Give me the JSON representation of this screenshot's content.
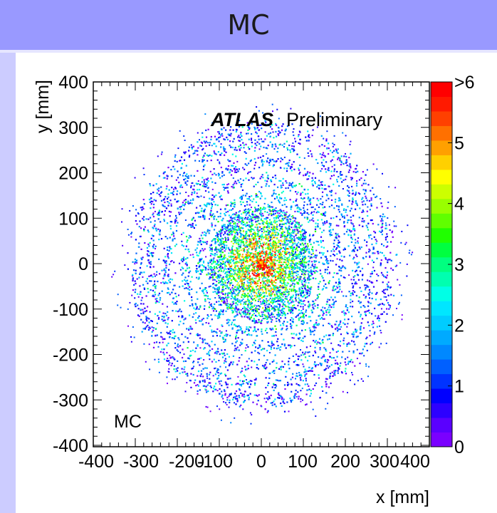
{
  "header": {
    "title": "MC"
  },
  "colors": {
    "header_bg": "#9999ff",
    "left_band": "#ccccff",
    "frame": "#000000"
  },
  "chart_data": {
    "type": "heatmap",
    "title": "",
    "xlabel": "x [mm]",
    "ylabel": "y [mm]",
    "xlim": [
      -400,
      400
    ],
    "ylim": [
      -400,
      400
    ],
    "x_ticks": [
      "-400",
      "-300",
      "-200",
      "-100",
      "0",
      "100",
      "200",
      "300",
      "400"
    ],
    "y_ticks": [
      "-400",
      "-300",
      "-200",
      "-100",
      "0",
      "100",
      "200",
      "300",
      "400"
    ],
    "colorbar": {
      "range": [
        0,
        6
      ],
      "ticks": [
        "0",
        "1",
        "2",
        "3",
        "4",
        "5",
        ">6"
      ],
      "overflow_label": ">6"
    },
    "annotations": {
      "atlas": "ATLAS",
      "preliminary": "Preliminary",
      "sample": "MC"
    },
    "rings_mm": [
      {
        "r": 8,
        "density": 6
      },
      {
        "r": 25,
        "density": 5.5
      },
      {
        "r": 45,
        "density": 5
      },
      {
        "r": 62,
        "density": 4.5
      },
      {
        "r": 80,
        "density": 3.5
      },
      {
        "r": 100,
        "density": 3
      },
      {
        "r": 120,
        "density": 2.5
      },
      {
        "r": 150,
        "density": 1.8
      },
      {
        "r": 185,
        "density": 1.5
      },
      {
        "r": 225,
        "density": 1.3
      },
      {
        "r": 265,
        "density": 1.2
      },
      {
        "r": 300,
        "density": 1.0
      }
    ],
    "grid": false
  }
}
